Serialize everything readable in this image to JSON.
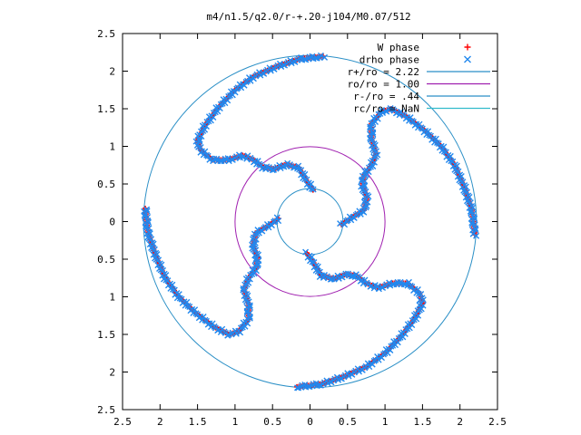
{
  "chart_data": {
    "type": "scatter",
    "title": "m4/n1.5/q2.0/r-+.20-j104/M0.07/512",
    "xlabel": "",
    "ylabel": "",
    "xlim": [
      -2.5,
      2.5
    ],
    "ylim": [
      -2.5,
      2.5
    ],
    "x_ticks": [
      "2.5",
      "2",
      "1.5",
      "1",
      "0.5",
      "0",
      "0.5",
      "1",
      "1.5",
      "2",
      "2.5"
    ],
    "y_ticks": [
      "2.5",
      "2",
      "1.5",
      "1",
      "0.5",
      "0",
      "0.5",
      "1",
      "1.5",
      "2",
      "2.5"
    ],
    "grid": false,
    "legend_position": "top-right",
    "series": [
      {
        "name": "W phase",
        "marker": "+",
        "color": "#ff0000",
        "kind": "points"
      },
      {
        "name": "drho phase",
        "marker": "x",
        "color": "#2288ee",
        "kind": "points"
      },
      {
        "name": "r+/ro = 2.22",
        "color": "#2a8fc6",
        "kind": "circle",
        "radius": 2.22
      },
      {
        "name": "ro/ro = 1.00",
        "color": "#a020b0",
        "kind": "circle",
        "radius": 1.0
      },
      {
        "name": "r-/ro = .44",
        "color": "#2a8fc6",
        "kind": "circle",
        "radius": 0.44
      },
      {
        "name": "rc/ro = NaN",
        "color": "#33bbcc",
        "kind": "circle",
        "radius": null
      }
    ],
    "arm_path": [
      [
        0.04,
        0.42
      ],
      [
        -0.05,
        0.55
      ],
      [
        -0.15,
        0.72
      ],
      [
        -0.32,
        0.76
      ],
      [
        -0.48,
        0.7
      ],
      [
        -0.62,
        0.72
      ],
      [
        -0.75,
        0.82
      ],
      [
        -0.9,
        0.88
      ],
      [
        -1.1,
        0.82
      ],
      [
        -1.3,
        0.82
      ],
      [
        -1.46,
        0.95
      ],
      [
        -1.5,
        1.08
      ],
      [
        -1.4,
        1.28
      ],
      [
        -1.22,
        1.52
      ],
      [
        -1.0,
        1.75
      ],
      [
        -0.75,
        1.93
      ],
      [
        -0.45,
        2.06
      ],
      [
        -0.15,
        2.16
      ],
      [
        0.2,
        2.2
      ]
    ],
    "arms": 4
  }
}
